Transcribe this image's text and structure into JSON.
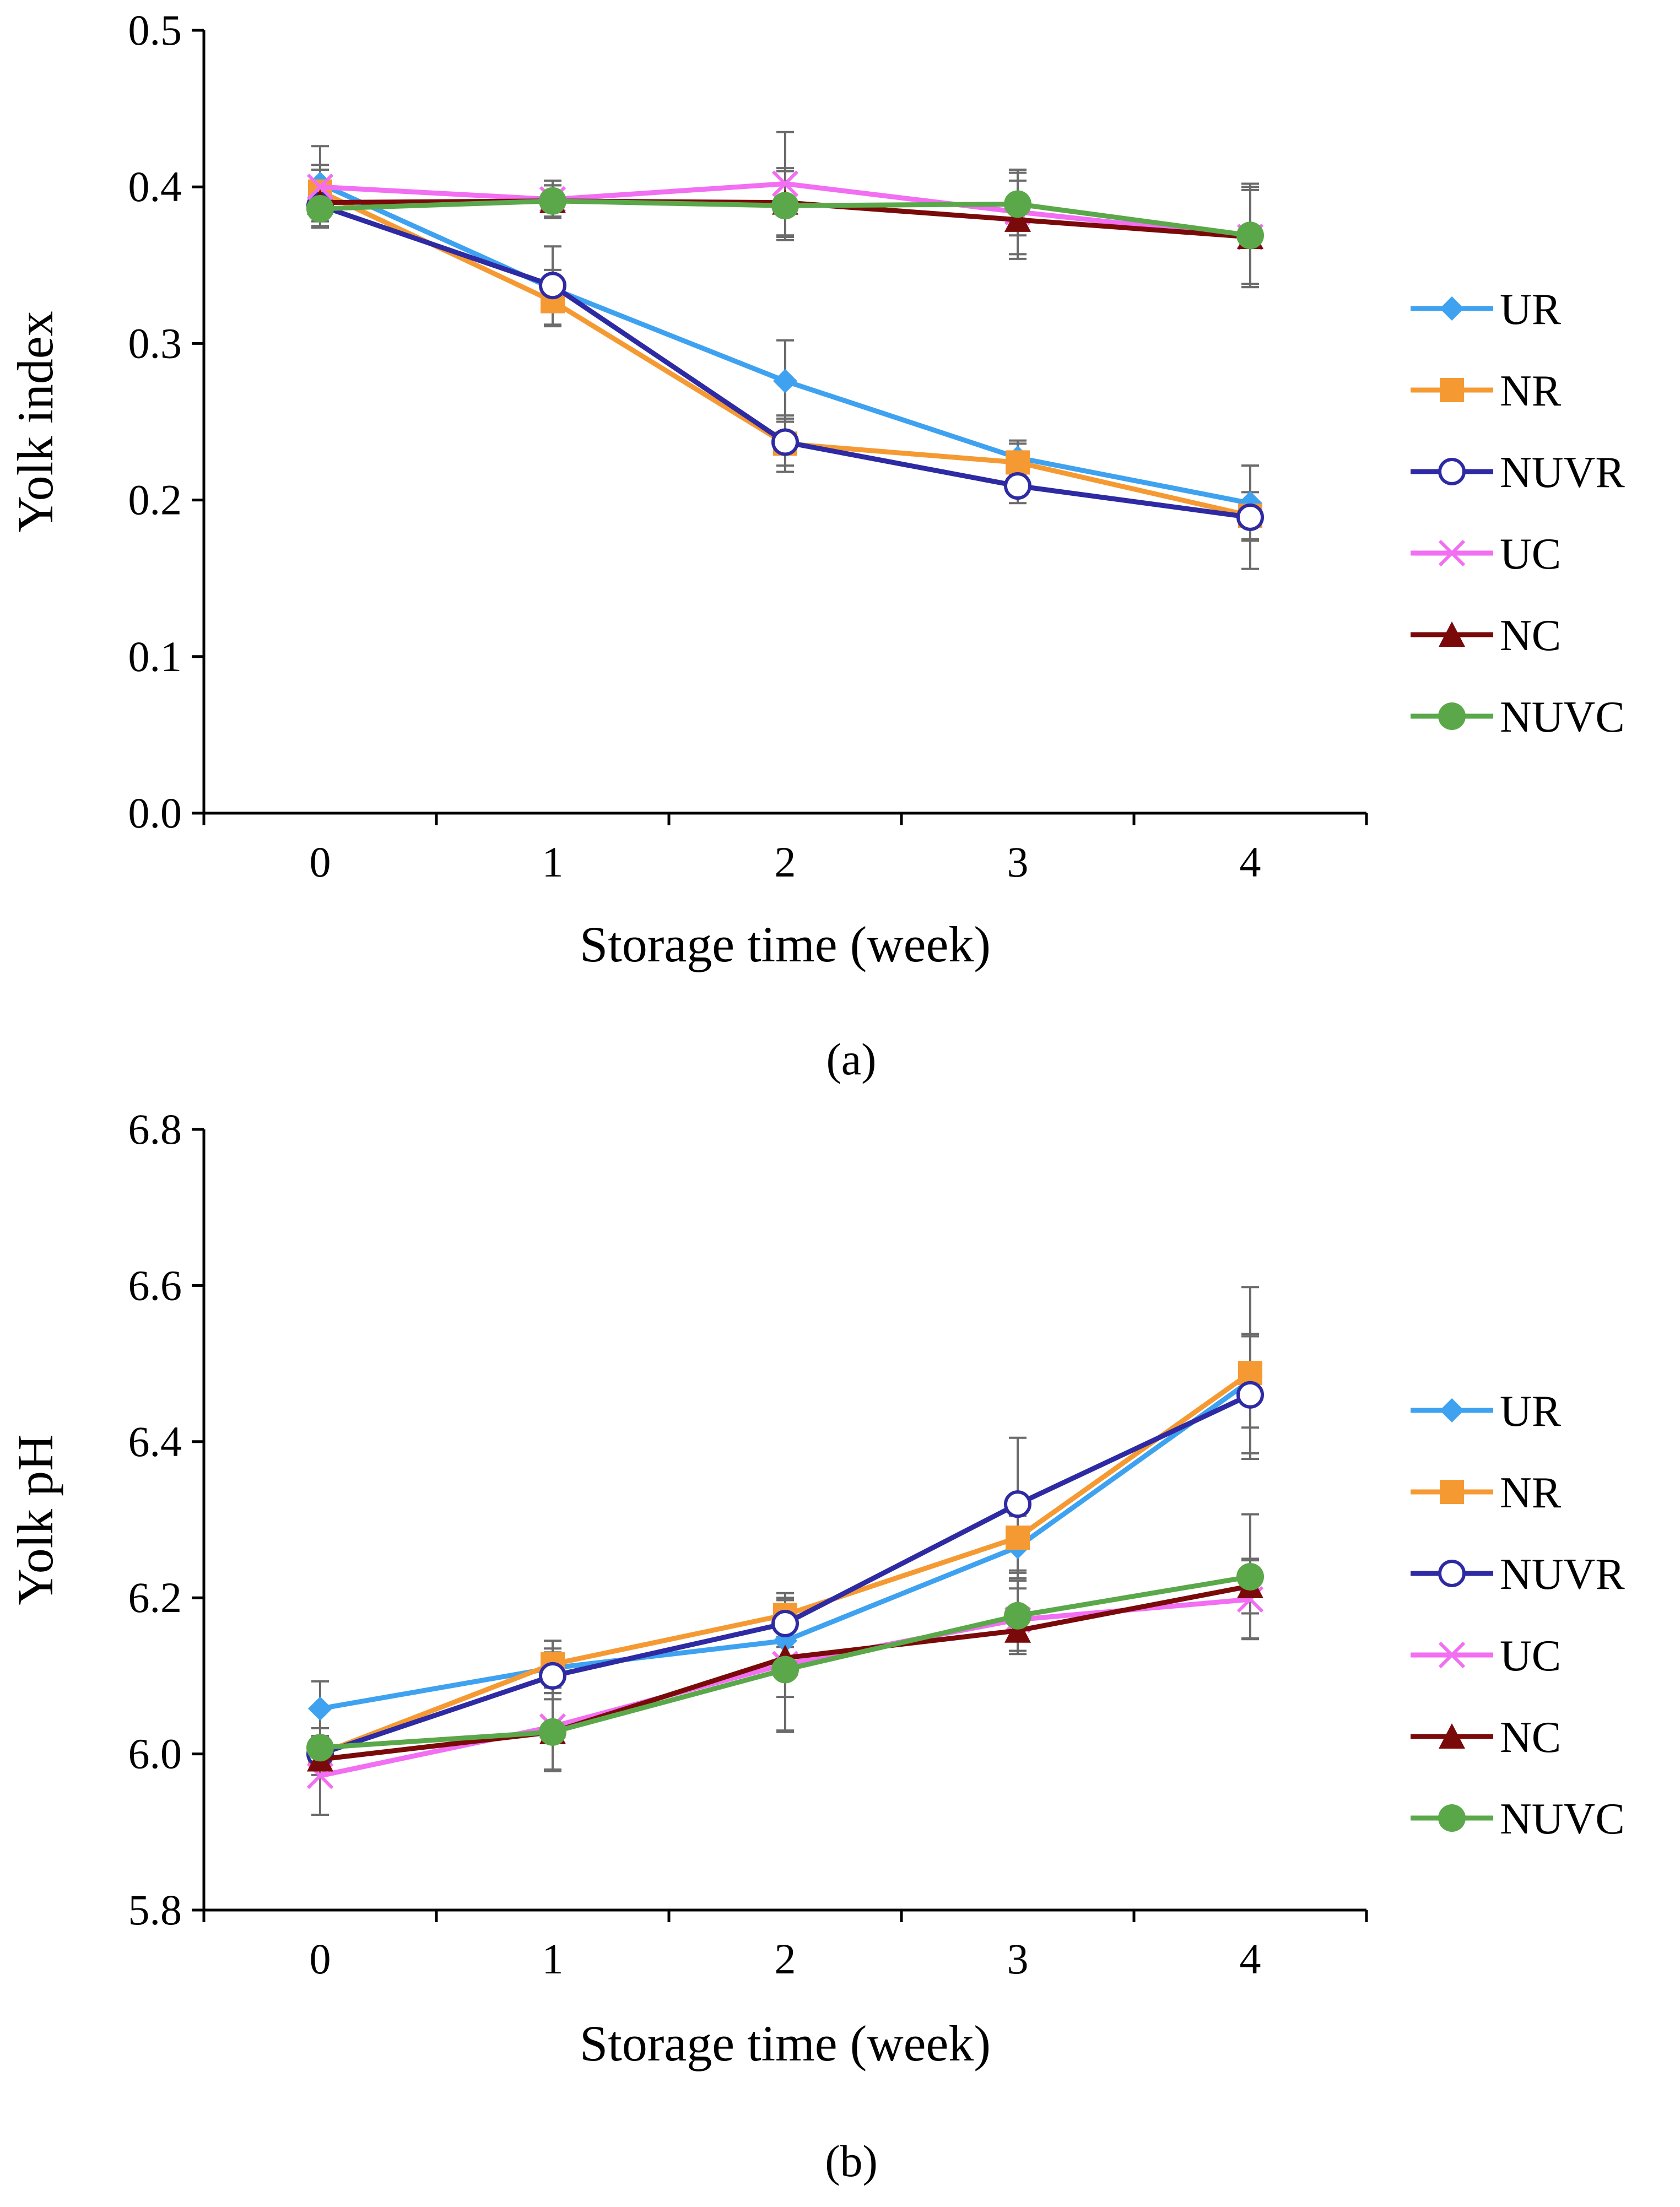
{
  "chart_data": [
    {
      "id": "a",
      "type": "line",
      "caption": "(a)",
      "title": "",
      "xlabel": "Storage time (week)",
      "ylabel": "Yolk index",
      "categories": [
        "0",
        "1",
        "2",
        "3",
        "4"
      ],
      "ylim": [
        0.0,
        0.5
      ],
      "yticks": [
        "0.0",
        "0.1",
        "0.2",
        "0.3",
        "0.4",
        "0.5"
      ],
      "ytick_values": [
        0.0,
        0.1,
        0.2,
        0.3,
        0.4,
        0.5
      ],
      "grid": false,
      "legend_position": "right",
      "series": [
        {
          "name": "UR",
          "color": "#3ea2f0",
          "marker": "diamond",
          "values": [
            0.402,
            0.335,
            0.276,
            0.227,
            0.198
          ],
          "errors": [
            0.012,
            0.012,
            0.026,
            0.011,
            0.024
          ]
        },
        {
          "name": "NR",
          "color": "#f59a33",
          "marker": "square",
          "values": [
            0.397,
            0.327,
            0.236,
            0.224,
            0.19
          ],
          "errors": [
            0.014,
            0.016,
            0.018,
            0.012,
            0.015
          ]
        },
        {
          "name": "NUVR",
          "color": "#2e2aa3",
          "marker": "open-circle",
          "values": [
            0.388,
            0.337,
            0.237,
            0.209,
            0.189
          ],
          "errors": [
            0.01,
            0.025,
            0.015,
            0.011,
            0.033
          ]
        },
        {
          "name": "UC",
          "color": "#f26ef2",
          "marker": "x",
          "values": [
            0.4,
            0.392,
            0.402,
            0.384,
            0.368
          ],
          "errors": [
            0.026,
            0.012,
            0.033,
            0.027,
            0.03
          ]
        },
        {
          "name": "NC",
          "color": "#7a0a0a",
          "marker": "triangle",
          "values": [
            0.39,
            0.391,
            0.39,
            0.379,
            0.368
          ],
          "errors": [
            0.015,
            0.01,
            0.022,
            0.025,
            0.032
          ]
        },
        {
          "name": "NUVC",
          "color": "#5aa84a",
          "marker": "filled-circle",
          "values": [
            0.386,
            0.391,
            0.388,
            0.389,
            0.369
          ],
          "errors": [
            0.012,
            0.01,
            0.022,
            0.02,
            0.033
          ]
        }
      ]
    },
    {
      "id": "b",
      "type": "line",
      "caption": "(b)",
      "title": "",
      "xlabel": "Storage time (week)",
      "ylabel": "Yolk pH",
      "categories": [
        "0",
        "1",
        "2",
        "3",
        "4"
      ],
      "ylim": [
        5.8,
        6.8
      ],
      "yticks": [
        "5.8",
        "6.0",
        "6.2",
        "6.4",
        "6.6",
        "6.8"
      ],
      "ytick_values": [
        5.8,
        6.0,
        6.2,
        6.4,
        6.6,
        6.8
      ],
      "grid": false,
      "legend_position": "right",
      "series": [
        {
          "name": "UR",
          "color": "#3ea2f0",
          "marker": "diamond",
          "values": [
            6.058,
            6.11,
            6.145,
            6.265,
            6.478
          ],
          "errors": [
            0.035,
            0.025,
            0.03,
            0.04,
            0.06
          ]
        },
        {
          "name": "NR",
          "color": "#f59a33",
          "marker": "square",
          "values": [
            6.0,
            6.115,
            6.178,
            6.277,
            6.488
          ],
          "errors": [
            0.02,
            0.03,
            0.028,
            0.045,
            0.11
          ]
        },
        {
          "name": "NUVR",
          "color": "#2e2aa3",
          "marker": "open-circle",
          "values": [
            6.0,
            6.1,
            6.167,
            6.32,
            6.46
          ],
          "errors": [
            0.02,
            0.03,
            0.03,
            0.085,
            0.075
          ]
        },
        {
          "name": "UC",
          "color": "#f26ef2",
          "marker": "x",
          "values": [
            5.972,
            6.035,
            6.115,
            6.172,
            6.198
          ],
          "errors": [
            0.05,
            0.055,
            0.085,
            0.04,
            0.05
          ]
        },
        {
          "name": "NC",
          "color": "#7a0a0a",
          "marker": "triangle",
          "values": [
            5.993,
            6.028,
            6.123,
            6.158,
            6.215
          ],
          "errors": [
            0.02,
            0.05,
            0.05,
            0.03,
            0.035
          ]
        },
        {
          "name": "NUVC",
          "color": "#5aa84a",
          "marker": "filled-circle",
          "values": [
            6.008,
            6.028,
            6.108,
            6.177,
            6.227
          ],
          "errors": [
            0.025,
            0.05,
            0.08,
            0.045,
            0.08
          ]
        }
      ]
    }
  ]
}
